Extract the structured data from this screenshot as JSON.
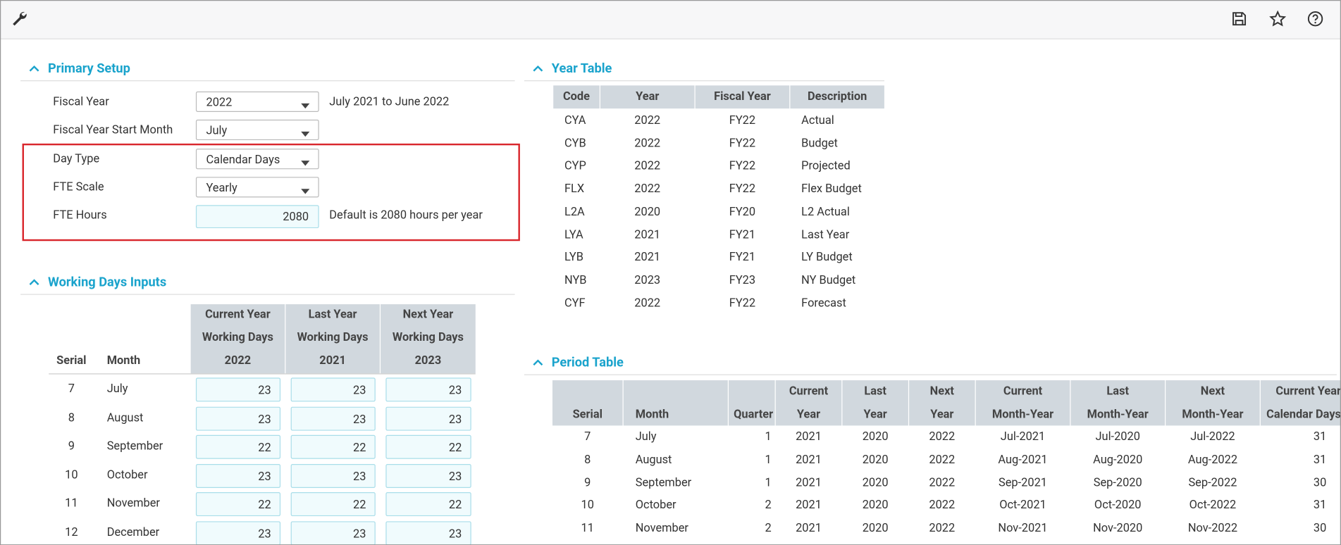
{
  "primary_setup": {
    "title": "Primary Setup",
    "fields": [
      {
        "label": "Fiscal Year",
        "value": "2022",
        "note": "July 2021 to June 2022"
      },
      {
        "label": "Fiscal Year Start Month",
        "value": "July"
      },
      {
        "label": "Day Type",
        "value": "Calendar Days"
      },
      {
        "label": "FTE Scale",
        "value": "Yearly"
      },
      {
        "label": "FTE Hours",
        "value": "2080",
        "note": "Default is 2080 hours per year"
      }
    ]
  },
  "working_days": {
    "title": "Working Days Inputs",
    "headers": [
      [
        "Serial"
      ],
      [
        "Month"
      ],
      [
        "Current Year",
        "Working Days",
        "2022"
      ],
      [
        "Last Year",
        "Working Days",
        "2021"
      ],
      [
        "Next Year",
        "Working Days",
        "2023"
      ]
    ],
    "rows": [
      [
        7,
        "July",
        23,
        23,
        23
      ],
      [
        8,
        "August",
        23,
        23,
        23
      ],
      [
        9,
        "September",
        22,
        22,
        22
      ],
      [
        10,
        "October",
        23,
        23,
        23
      ],
      [
        11,
        "November",
        22,
        22,
        22
      ],
      [
        12,
        "December",
        23,
        23,
        23
      ]
    ]
  },
  "year_table": {
    "title": "Year Table",
    "headers": [
      "Code",
      "Year",
      "Fiscal Year",
      "Description"
    ],
    "rows": [
      [
        "CYA",
        2022,
        "FY22",
        "Actual"
      ],
      [
        "CYB",
        2022,
        "FY22",
        "Budget"
      ],
      [
        "CYP",
        2022,
        "FY22",
        "Projected"
      ],
      [
        "FLX",
        2022,
        "FY22",
        "Flex Budget"
      ],
      [
        "L2A",
        2020,
        "FY20",
        "L2 Actual"
      ],
      [
        "LYA",
        2021,
        "FY21",
        "Last Year"
      ],
      [
        "LYB",
        2021,
        "FY21",
        "LY Budget"
      ],
      [
        "NYB",
        2023,
        "FY23",
        "NY Budget"
      ],
      [
        "CYF",
        2022,
        "FY22",
        "Forecast"
      ]
    ]
  },
  "period_table": {
    "title": "Period Table",
    "headers": [
      [
        "Serial"
      ],
      [
        "Month"
      ],
      [
        "Quarter"
      ],
      [
        "Current",
        "Year"
      ],
      [
        "Last",
        "Year"
      ],
      [
        "Next",
        "Year"
      ],
      [
        "Current",
        "Month-Year"
      ],
      [
        "Last",
        "Month-Year"
      ],
      [
        "Next",
        "Month-Year"
      ],
      [
        "Current Year",
        "Calendar Days"
      ]
    ],
    "rows": [
      [
        7,
        "July",
        1,
        2021,
        2020,
        2022,
        "Jul-2021",
        "Jul-2020",
        "Jul-2022",
        31
      ],
      [
        8,
        "August",
        1,
        2021,
        2020,
        2022,
        "Aug-2021",
        "Aug-2020",
        "Aug-2022",
        31
      ],
      [
        9,
        "September",
        1,
        2021,
        2020,
        2022,
        "Sep-2021",
        "Sep-2020",
        "Sep-2022",
        30
      ],
      [
        10,
        "October",
        2,
        2021,
        2020,
        2022,
        "Oct-2021",
        "Oct-2020",
        "Oct-2022",
        31
      ],
      [
        11,
        "November",
        2,
        2021,
        2020,
        2022,
        "Nov-2021",
        "Nov-2020",
        "Nov-2022",
        30
      ]
    ]
  }
}
